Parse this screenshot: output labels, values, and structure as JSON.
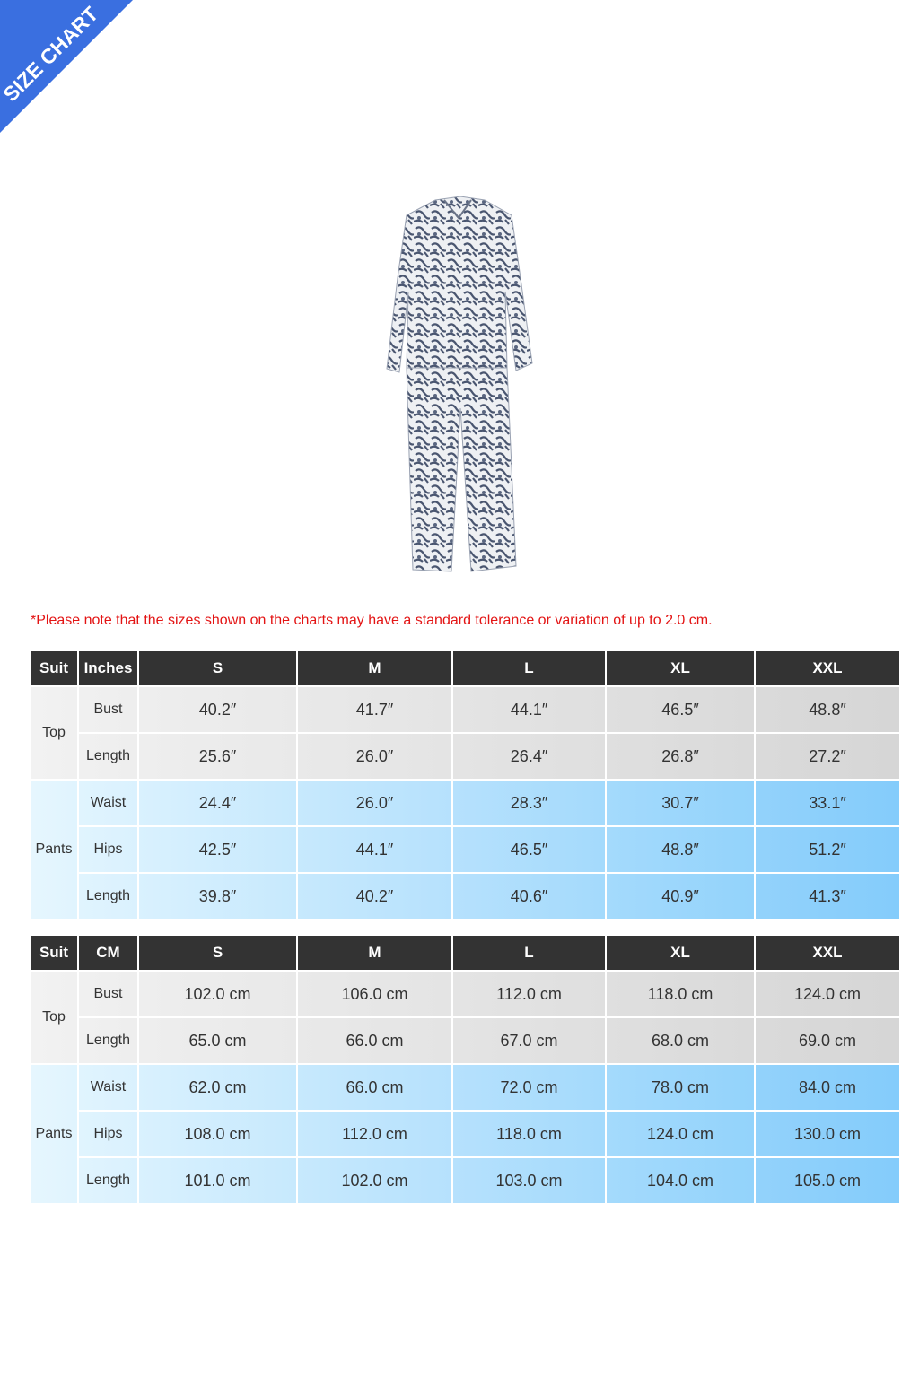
{
  "banner": {
    "text": "SIZE CHART",
    "color": "#3a6fe0"
  },
  "note": "*Please note that the sizes shown on the charts may have a standard tolerance or variation of up to 2.0 cm.",
  "colors": {
    "header": "#333333",
    "top_row_start": "#f2f2f2",
    "top_row_end": "#d6d6d6",
    "pants_row_start": "#e6f6fe",
    "pants_row_end": "#84ccfb",
    "note": "#e31414"
  },
  "tables": [
    {
      "headers": [
        "Suit",
        "Inches",
        "S",
        "M",
        "L",
        "XL",
        "XXL"
      ],
      "groups": [
        {
          "name": "Top",
          "rows": [
            {
              "measure": "Bust",
              "values": [
                "40.2″",
                "41.7″",
                "44.1″",
                "46.5″",
                "48.8″"
              ]
            },
            {
              "measure": "Length",
              "values": [
                "25.6″",
                "26.0″",
                "26.4″",
                "26.8″",
                "27.2″"
              ]
            }
          ]
        },
        {
          "name": "Pants",
          "rows": [
            {
              "measure": "Waist",
              "values": [
                "24.4″",
                "26.0″",
                "28.3″",
                "30.7″",
                "33.1″"
              ]
            },
            {
              "measure": "Hips",
              "values": [
                "42.5″",
                "44.1″",
                "46.5″",
                "48.8″",
                "51.2″"
              ]
            },
            {
              "measure": "Length",
              "values": [
                "39.8″",
                "40.2″",
                "40.6″",
                "40.9″",
                "41.3″"
              ]
            }
          ]
        }
      ]
    },
    {
      "headers": [
        "Suit",
        "CM",
        "S",
        "M",
        "L",
        "XL",
        "XXL"
      ],
      "groups": [
        {
          "name": "Top",
          "rows": [
            {
              "measure": "Bust",
              "values": [
                "102.0 cm",
                "106.0 cm",
                "112.0 cm",
                "118.0 cm",
                "124.0 cm"
              ]
            },
            {
              "measure": "Length",
              "values": [
                "65.0 cm",
                "66.0 cm",
                "67.0 cm",
                "68.0 cm",
                "69.0 cm"
              ]
            }
          ]
        },
        {
          "name": "Pants",
          "rows": [
            {
              "measure": "Waist",
              "values": [
                "62.0 cm",
                "66.0 cm",
                "72.0 cm",
                "78.0 cm",
                "84.0 cm"
              ]
            },
            {
              "measure": "Hips",
              "values": [
                "108.0 cm",
                "112.0 cm",
                "118.0 cm",
                "124.0 cm",
                "130.0 cm"
              ]
            },
            {
              "measure": "Length",
              "values": [
                "101.0 cm",
                "102.0 cm",
                "103.0 cm",
                "104.0 cm",
                "105.0 cm"
              ]
            }
          ]
        }
      ]
    }
  ]
}
